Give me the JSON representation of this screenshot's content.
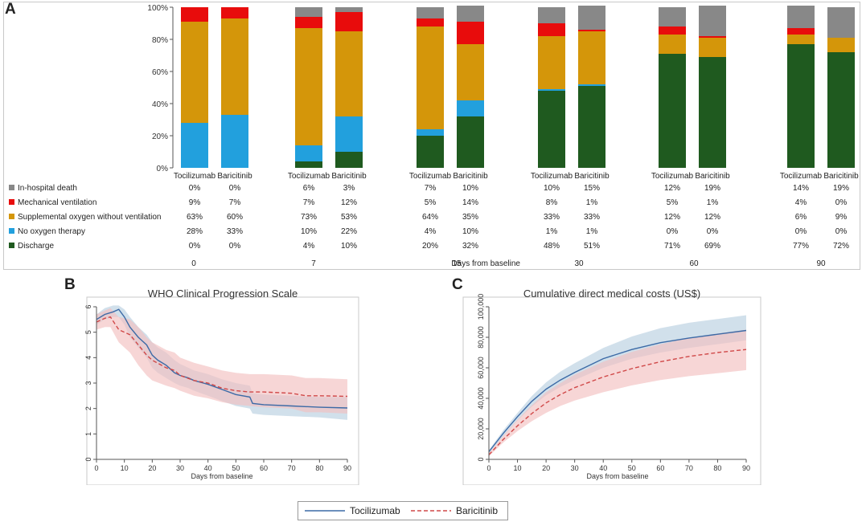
{
  "figure_labels": {
    "a": "A",
    "b": "B",
    "c": "C"
  },
  "chart_data": [
    {
      "type": "bar",
      "stacked": true,
      "ylim": [
        0,
        100
      ],
      "yticks": [
        "0%",
        "20%",
        "40%",
        "60%",
        "80%",
        "100%"
      ],
      "timepoints": [
        "0",
        "7",
        "15",
        "30",
        "60",
        "90"
      ],
      "xlabel": "Days from baseline",
      "groups": [
        "Tocilizumab",
        "Baricitinib"
      ],
      "series": [
        {
          "name": "Discharge",
          "color": "#1f5a1f",
          "values": [
            [
              0,
              0
            ],
            [
              4,
              10
            ],
            [
              20,
              32
            ],
            [
              48,
              51
            ],
            [
              71,
              69
            ],
            [
              77,
              72
            ]
          ],
          "labels": [
            [
              "0%",
              "0%"
            ],
            [
              "4%",
              "10%"
            ],
            [
              "20%",
              "32%"
            ],
            [
              "48%",
              "51%"
            ],
            [
              "71%",
              "69%"
            ],
            [
              "77%",
              "72%"
            ]
          ]
        },
        {
          "name": "No oxygen therapy",
          "color": "#22a0dd",
          "values": [
            [
              28,
              33
            ],
            [
              10,
              22
            ],
            [
              4,
              10
            ],
            [
              1,
              1
            ],
            [
              0,
              0
            ],
            [
              0,
              0
            ]
          ],
          "labels": [
            [
              "28%",
              "33%"
            ],
            [
              "10%",
              "22%"
            ],
            [
              "4%",
              "10%"
            ],
            [
              "1%",
              "1%"
            ],
            [
              "0%",
              "0%"
            ],
            [
              "0%",
              "0%"
            ]
          ]
        },
        {
          "name": "Supplemental oxygen without ventilation",
          "color": "#d4960a",
          "values": [
            [
              63,
              60
            ],
            [
              73,
              53
            ],
            [
              64,
              35
            ],
            [
              33,
              33
            ],
            [
              12,
              12
            ],
            [
              6,
              9
            ]
          ],
          "labels": [
            [
              "63%",
              "60%"
            ],
            [
              "73%",
              "53%"
            ],
            [
              "64%",
              "35%"
            ],
            [
              "33%",
              "33%"
            ],
            [
              "12%",
              "12%"
            ],
            [
              "6%",
              "9%"
            ]
          ]
        },
        {
          "name": "Mechanical ventilation",
          "color": "#e80c0c",
          "values": [
            [
              9,
              7
            ],
            [
              7,
              12
            ],
            [
              5,
              14
            ],
            [
              8,
              1
            ],
            [
              5,
              1
            ],
            [
              4,
              0
            ]
          ],
          "labels": [
            [
              "9%",
              "7%"
            ],
            [
              "7%",
              "12%"
            ],
            [
              "5%",
              "14%"
            ],
            [
              "8%",
              "1%"
            ],
            [
              "5%",
              "1%"
            ],
            [
              "4%",
              "0%"
            ]
          ]
        },
        {
          "name": "In-hospital death",
          "color": "#888888",
          "values": [
            [
              0,
              0
            ],
            [
              6,
              3
            ],
            [
              7,
              10
            ],
            [
              10,
              15
            ],
            [
              12,
              19
            ],
            [
              14,
              19
            ]
          ],
          "labels": [
            [
              "0%",
              "0%"
            ],
            [
              "6%",
              "3%"
            ],
            [
              "7%",
              "10%"
            ],
            [
              "10%",
              "15%"
            ],
            [
              "12%",
              "19%"
            ],
            [
              "14%",
              "19%"
            ]
          ]
        }
      ]
    },
    {
      "type": "line",
      "title": "WHO Clinical Progression Scale",
      "xlabel": "Days from baseline",
      "ylabel": "",
      "xlim": [
        0,
        90
      ],
      "ylim": [
        0,
        6
      ],
      "xticks": [
        0,
        10,
        20,
        30,
        40,
        50,
        60,
        70,
        80,
        90
      ],
      "yticks": [
        0,
        1,
        2,
        3,
        4,
        5,
        6
      ],
      "series": [
        {
          "name": "Tocilizumab",
          "color": "#3c6aa6",
          "dash": false,
          "band_color": "#b9cfe0",
          "x": [
            0,
            3,
            6,
            8,
            10,
            12,
            15,
            18,
            20,
            22,
            25,
            28,
            30,
            33,
            35,
            40,
            45,
            50,
            55,
            56,
            60,
            70,
            80,
            90
          ],
          "y": [
            5.5,
            5.7,
            5.8,
            5.9,
            5.6,
            5.2,
            4.8,
            4.5,
            4.1,
            3.9,
            3.7,
            3.4,
            3.3,
            3.2,
            3.1,
            2.95,
            2.75,
            2.55,
            2.45,
            2.2,
            2.15,
            2.1,
            2.05,
            2.02
          ],
          "lo": [
            5.3,
            5.5,
            5.6,
            5.6,
            5.3,
            4.8,
            4.4,
            4.0,
            3.6,
            3.4,
            3.2,
            3.0,
            2.9,
            2.8,
            2.7,
            2.5,
            2.3,
            2.1,
            2.0,
            1.8,
            1.75,
            1.7,
            1.65,
            1.55
          ],
          "hi": [
            5.7,
            5.95,
            6.05,
            6.05,
            5.9,
            5.6,
            5.2,
            4.9,
            4.6,
            4.4,
            4.2,
            3.9,
            3.75,
            3.6,
            3.5,
            3.35,
            3.15,
            3.0,
            2.9,
            2.6,
            2.55,
            2.5,
            2.45,
            2.45
          ]
        },
        {
          "name": "Baricitinib",
          "color": "#d04848",
          "dash": true,
          "band_color": "#f2c0c0",
          "x": [
            0,
            3,
            5,
            8,
            10,
            12,
            15,
            18,
            20,
            25,
            28,
            30,
            35,
            40,
            45,
            50,
            55,
            60,
            70,
            75,
            80,
            90
          ],
          "y": [
            5.4,
            5.55,
            5.6,
            5.1,
            5.0,
            4.9,
            4.5,
            4.1,
            3.9,
            3.6,
            3.5,
            3.3,
            3.1,
            3.0,
            2.8,
            2.7,
            2.65,
            2.65,
            2.6,
            2.5,
            2.5,
            2.48
          ],
          "lo": [
            5.1,
            5.2,
            5.2,
            4.6,
            4.4,
            4.2,
            3.7,
            3.3,
            3.1,
            2.9,
            2.8,
            2.7,
            2.5,
            2.4,
            2.25,
            2.15,
            2.1,
            2.05,
            2.0,
            1.85,
            1.85,
            1.8
          ],
          "hi": [
            5.7,
            5.85,
            5.95,
            5.6,
            5.55,
            5.5,
            5.2,
            4.8,
            4.6,
            4.3,
            4.2,
            4.0,
            3.8,
            3.65,
            3.5,
            3.4,
            3.35,
            3.35,
            3.3,
            3.2,
            3.2,
            3.15
          ]
        }
      ]
    },
    {
      "type": "line",
      "title": "Cumulative direct medical costs (US$)",
      "xlabel": "Days from baseline",
      "ylabel": "",
      "xlim": [
        0,
        90
      ],
      "ylim": [
        0,
        100000
      ],
      "xticks": [
        0,
        10,
        20,
        30,
        40,
        50,
        60,
        70,
        80,
        90
      ],
      "yticks": [
        "0",
        "20,000",
        "40,000",
        "60,000",
        "80,000",
        "100,000"
      ],
      "series": [
        {
          "name": "Tocilizumab",
          "color": "#3c6aa6",
          "dash": false,
          "band_color": "#b9cfe0",
          "x": [
            0,
            5,
            10,
            15,
            20,
            25,
            30,
            40,
            50,
            60,
            70,
            80,
            90
          ],
          "y": [
            5000,
            17000,
            28000,
            38000,
            46000,
            52000,
            57000,
            66000,
            72000,
            76500,
            79500,
            82000,
            84500
          ],
          "lo": [
            4000,
            15000,
            25500,
            34500,
            42000,
            47500,
            52000,
            60000,
            66000,
            70000,
            73000,
            75500,
            78000
          ],
          "hi": [
            6000,
            19000,
            30500,
            41500,
            50500,
            57500,
            63000,
            73000,
            80500,
            86000,
            89500,
            92000,
            94500
          ]
        },
        {
          "name": "Baricitinib",
          "color": "#d04848",
          "dash": true,
          "band_color": "#f2c0c0",
          "x": [
            0,
            5,
            10,
            15,
            20,
            25,
            30,
            40,
            50,
            60,
            70,
            80,
            90
          ],
          "y": [
            3000,
            13000,
            22000,
            30000,
            37000,
            42500,
            47000,
            54000,
            59500,
            64000,
            67500,
            70000,
            72000
          ],
          "lo": [
            2000,
            11000,
            18500,
            25000,
            30500,
            35000,
            38500,
            44000,
            48500,
            52000,
            54500,
            56500,
            58500
          ],
          "hi": [
            4000,
            15500,
            26000,
            35500,
            44000,
            50000,
            55500,
            64000,
            70500,
            75500,
            79500,
            82500,
            85000
          ]
        }
      ]
    }
  ],
  "legend": {
    "items": [
      {
        "name": "Tocilizumab",
        "color": "#3c6aa6",
        "dash": false
      },
      {
        "name": "Baricitinib",
        "color": "#d04848",
        "dash": true
      }
    ]
  }
}
